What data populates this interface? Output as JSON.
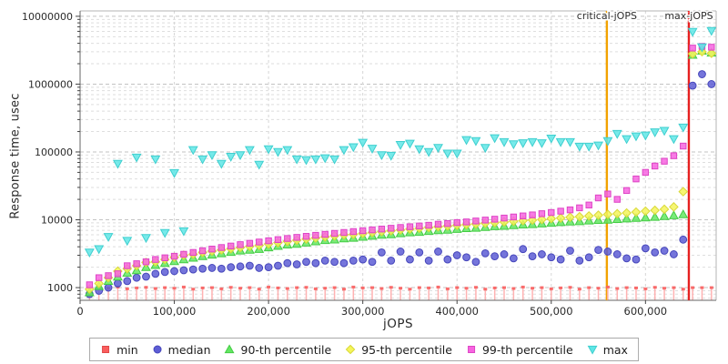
{
  "accent_colors": {
    "grid_major": "#c3c3c3",
    "grid_minor": "#dedede",
    "grid_vertical": "#d6d6d6",
    "border_light": "#b4b4b4",
    "axis_dark": "#666666",
    "tick": "#444444",
    "text": "#2b2b2b"
  },
  "chart_data": {
    "type": "scatter",
    "title": "",
    "xlabel": "jOPS",
    "ylabel": "Response time, usec",
    "x_axis": {
      "min": 0,
      "max": 675000,
      "tick_values": [
        0,
        100000,
        200000,
        300000,
        400000,
        500000,
        600000
      ],
      "tick_labels": [
        "0",
        "100,000",
        "200,000",
        "300,000",
        "400,000",
        "500,000",
        "600,000"
      ]
    },
    "y_axis": {
      "scale": "log",
      "min": 650,
      "max": 12000000,
      "tick_values": [
        1000,
        10000,
        100000,
        1000000,
        10000000
      ],
      "tick_labels": [
        "1000",
        "10000",
        "100000",
        "1000000",
        "10000000"
      ]
    },
    "annotations": [
      {
        "id": "critical-jops",
        "label": "critical-jOPS",
        "x": 559000,
        "color": "#f2a200"
      },
      {
        "id": "max-jops",
        "label": "max-jOPS",
        "x": 646000,
        "color": "#e62020"
      }
    ],
    "x": [
      10000,
      20000,
      30000,
      40000,
      50000,
      60000,
      70000,
      80000,
      90000,
      100000,
      110000,
      120000,
      130000,
      140000,
      150000,
      160000,
      170000,
      180000,
      190000,
      200000,
      210000,
      220000,
      230000,
      240000,
      250000,
      260000,
      270000,
      280000,
      290000,
      300000,
      310000,
      320000,
      330000,
      340000,
      350000,
      360000,
      370000,
      380000,
      390000,
      400000,
      410000,
      420000,
      430000,
      440000,
      450000,
      460000,
      470000,
      480000,
      490000,
      500000,
      510000,
      520000,
      530000,
      540000,
      550000,
      560000,
      570000,
      580000,
      590000,
      600000,
      610000,
      620000,
      630000,
      640000,
      650000,
      660000,
      670000
    ],
    "series": [
      {
        "name": "min",
        "marker": "impulse",
        "fill": "#fa5d5d",
        "edge": "#e04848",
        "impulse_color": "#ffb2b2",
        "values": [
          950,
          1000,
          980,
          1020,
          960,
          990,
          1010,
          970,
          1000,
          980,
          1020,
          950,
          990,
          1000,
          960,
          1010,
          980,
          1000,
          950,
          1020,
          990,
          970,
          1000,
          1010,
          960,
          980,
          1000,
          950,
          1020,
          990,
          1000,
          970,
          1010,
          980,
          950,
          1000,
          990,
          1020,
          960,
          1000,
          980,
          1010,
          950,
          990,
          1000,
          970,
          1020,
          980,
          1000,
          960,
          990,
          1010,
          950,
          1000,
          980,
          1020,
          970,
          1000,
          990,
          960,
          1010,
          980,
          1000,
          950,
          1000,
          1000,
          1000
        ]
      },
      {
        "name": "median",
        "marker": "circle",
        "fill": "#5d5dd5",
        "edge": "#4646bb",
        "values": [
          800,
          900,
          1000,
          1150,
          1250,
          1400,
          1450,
          1600,
          1700,
          1750,
          1800,
          1850,
          1900,
          1950,
          1900,
          2000,
          2050,
          2100,
          1950,
          2000,
          2100,
          2300,
          2200,
          2400,
          2300,
          2500,
          2400,
          2300,
          2500,
          2600,
          2400,
          3300,
          2500,
          3400,
          2600,
          3300,
          2500,
          3400,
          2600,
          3000,
          2800,
          2400,
          3200,
          2900,
          3100,
          2700,
          3700,
          2900,
          3100,
          2800,
          2600,
          3500,
          2500,
          2800,
          3600,
          3400,
          3100,
          2700,
          2600,
          3800,
          3300,
          3500,
          3100,
          5100,
          950000,
          1400000,
          1000000
        ]
      },
      {
        "name": "90-th percentile",
        "marker": "triangle-up",
        "fill": "#63e763",
        "edge": "#44cc44",
        "values": [
          850,
          1050,
          1250,
          1450,
          1650,
          1800,
          2000,
          2150,
          2300,
          2450,
          2600,
          2750,
          2900,
          3050,
          3200,
          3350,
          3500,
          3600,
          3700,
          3900,
          4100,
          4300,
          4400,
          4600,
          4800,
          5000,
          5100,
          5300,
          5400,
          5600,
          5800,
          6000,
          6100,
          6300,
          6500,
          6600,
          6800,
          7000,
          7100,
          7300,
          7500,
          7600,
          7800,
          8000,
          8100,
          8300,
          8500,
          8600,
          8800,
          9000,
          9200,
          9400,
          9500,
          9700,
          9900,
          10000,
          10200,
          10400,
          10600,
          10800,
          11000,
          11300,
          11600,
          12000,
          2700000,
          3100000,
          2900000
        ]
      },
      {
        "name": "95-th percentile",
        "marker": "diamond",
        "fill": "#f5f55a",
        "edge": "#d8d838",
        "values": [
          950,
          1150,
          1400,
          1750,
          1900,
          2100,
          2350,
          2400,
          2600,
          2800,
          3000,
          3100,
          3300,
          3450,
          3600,
          3750,
          3900,
          4050,
          4200,
          4400,
          4600,
          4800,
          5000,
          5200,
          5400,
          5600,
          5800,
          6000,
          6100,
          6300,
          6500,
          6700,
          6900,
          7100,
          7300,
          7500,
          7700,
          7900,
          8100,
          8300,
          8500,
          8700,
          8900,
          9100,
          9300,
          9500,
          9700,
          9900,
          10100,
          10400,
          10600,
          10900,
          11100,
          11400,
          11700,
          12000,
          12300,
          12600,
          13000,
          13400,
          13800,
          14300,
          15500,
          26000,
          2800000,
          3000000,
          2850000
        ]
      },
      {
        "name": "99-th percentile",
        "marker": "square",
        "fill": "#f764e0",
        "edge": "#dd44c4",
        "values": [
          1100,
          1400,
          1500,
          1600,
          2100,
          2250,
          2400,
          2600,
          2750,
          2900,
          3100,
          3300,
          3500,
          3700,
          3900,
          4100,
          4300,
          4500,
          4700,
          4900,
          5100,
          5300,
          5500,
          5700,
          5900,
          6100,
          6300,
          6500,
          6700,
          6900,
          7100,
          7300,
          7500,
          7700,
          7900,
          8100,
          8300,
          8600,
          8800,
          9100,
          9300,
          9600,
          9900,
          10200,
          10600,
          11000,
          11400,
          11800,
          12300,
          12800,
          13400,
          14000,
          15000,
          16500,
          21000,
          24000,
          20000,
          27000,
          40000,
          50000,
          62000,
          73000,
          88000,
          122000,
          3400000,
          3600000,
          3500000
        ]
      },
      {
        "name": "max",
        "marker": "triangle-down",
        "fill": "#5fe6e6",
        "edge": "#3fcfcf",
        "values": [
          3300,
          3700,
          5600,
          67000,
          4900,
          83000,
          5400,
          78000,
          6400,
          49000,
          6800,
          107000,
          78000,
          90000,
          67000,
          85000,
          90000,
          107000,
          65000,
          110000,
          100000,
          107000,
          78000,
          76000,
          78000,
          81000,
          78000,
          107000,
          118000,
          137000,
          112000,
          90000,
          88000,
          127000,
          133000,
          110000,
          100000,
          115000,
          95000,
          95000,
          150000,
          145000,
          115000,
          160000,
          140000,
          130000,
          135000,
          140000,
          135000,
          158000,
          140000,
          140000,
          120000,
          120000,
          125000,
          145000,
          185000,
          155000,
          170000,
          175000,
          195000,
          205000,
          155000,
          230000,
          5900000,
          3500000,
          6100000
        ]
      }
    ],
    "legend": {
      "position": "bottom-center",
      "items": [
        "min",
        "median",
        "90-th percentile",
        "95-th percentile",
        "99-th percentile",
        "max"
      ]
    },
    "grid": true
  }
}
